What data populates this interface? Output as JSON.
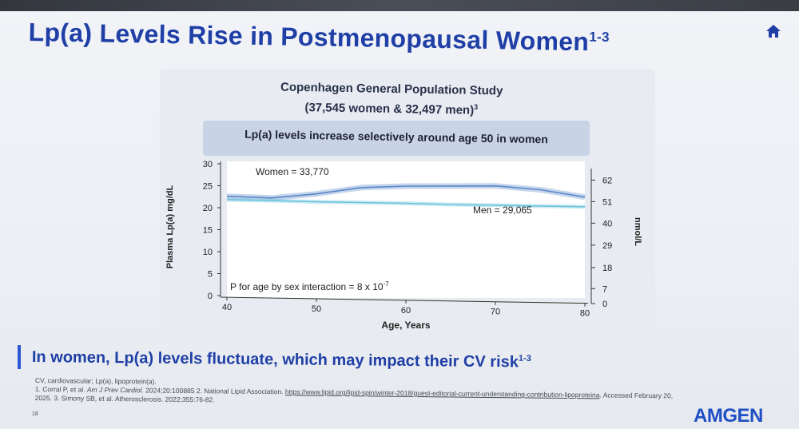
{
  "slide": {
    "title": "Lp(a) Levels Rise in Postmenopausal Women",
    "title_superscript": "1-3",
    "home_icon": "home-icon",
    "page_number": "18",
    "logo_text": "AMGEN",
    "accent_color": "#1f3fa6"
  },
  "study": {
    "title_line1": "Copenhagen General Population Study",
    "title_line2": "(37,545 women & 32,497 men)",
    "title_superscript": "3",
    "banner": "Lp(a) levels increase selectively around age 50 in women"
  },
  "chart_data": {
    "type": "line",
    "xlabel": "Age, Years",
    "ylabel": "Plasma Lp(a) mg/dL",
    "y2label": "nmol/L",
    "xlim": [
      40,
      80
    ],
    "ylim": [
      0,
      30
    ],
    "x_ticks": [
      40,
      50,
      60,
      70,
      80
    ],
    "y_ticks": [
      0,
      5,
      10,
      15,
      20,
      25,
      30
    ],
    "y2_ticks": [
      {
        "mgdl": 0,
        "label": "0"
      },
      {
        "mgdl": 3.4,
        "label": "7"
      },
      {
        "mgdl": 8.2,
        "label": "18"
      },
      {
        "mgdl": 13.3,
        "label": "29"
      },
      {
        "mgdl": 18.3,
        "label": "40"
      },
      {
        "mgdl": 23.2,
        "label": "51"
      },
      {
        "mgdl": 28.1,
        "label": "62"
      }
    ],
    "series": [
      {
        "name": "Women = 33,770",
        "color": "#5a87c9",
        "x": [
          40,
          45,
          50,
          55,
          60,
          65,
          70,
          75,
          80
        ],
        "y": [
          22.6,
          22.4,
          23.5,
          25.1,
          25.6,
          25.8,
          26.0,
          25.3,
          23.8
        ]
      },
      {
        "name": "Men = 29,065",
        "color": "#6cc4dc",
        "x": [
          40,
          45,
          50,
          55,
          60,
          65,
          70,
          75,
          80
        ],
        "y": [
          21.8,
          21.8,
          21.7,
          21.7,
          21.7,
          21.6,
          21.6,
          21.6,
          21.6
        ]
      }
    ],
    "annotation": "P for age by sex interaction = 8 x 10",
    "annotation_superscript": "-7"
  },
  "takeaway": {
    "text": "In women, Lp(a) levels fluctuate, which may impact their CV risk",
    "superscript": "1-3"
  },
  "footnotes": {
    "abbrev": "CV, cardiovascular; Lp(a), lipoprotein(a).",
    "ref1_author": "1. Corral P, et al. ",
    "ref1_journal": "Am J Prev Cardiol.",
    "ref1_rest": " 2024;20:100885 2. National Lipid Association. ",
    "ref2_link": "https://www.lipid.org/lipid-spin/winter-2018/guest-editorial-current-understanding-contribution-lipoproteina",
    "ref2_rest": ". Accessed February 20, 2025. 3. Simony SB, et al. Atherosclerosis. 2022;355:76-82."
  }
}
